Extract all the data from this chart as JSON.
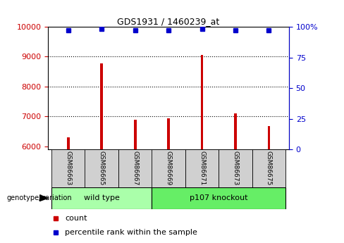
{
  "title": "GDS1931 / 1460239_at",
  "samples": [
    "GSM86663",
    "GSM86665",
    "GSM86667",
    "GSM86669",
    "GSM86671",
    "GSM86673",
    "GSM86675"
  ],
  "counts": [
    6300,
    8780,
    6900,
    6940,
    9050,
    7100,
    6680
  ],
  "percentile_ranks": [
    97,
    98,
    97,
    97,
    98,
    97,
    97
  ],
  "bar_color": "#cc0000",
  "dot_color": "#0000cc",
  "ylim_left": [
    5900,
    10000
  ],
  "ylim_right": [
    0,
    100
  ],
  "yticks_left": [
    6000,
    7000,
    8000,
    9000,
    10000
  ],
  "yticks_right": [
    0,
    25,
    50,
    75,
    100
  ],
  "yticklabels_right": [
    "0",
    "25",
    "50",
    "75",
    "100%"
  ],
  "grid_values": [
    7000,
    8000,
    9000
  ],
  "left_axis_color": "#cc0000",
  "right_axis_color": "#0000cc",
  "tick_box_color": "#d0d0d0",
  "legend_count_label": "count",
  "legend_pct_label": "percentile rank within the sample",
  "genotype_label": "genotype/variation",
  "wt_color": "#aaffaa",
  "ko_color": "#66ee66"
}
